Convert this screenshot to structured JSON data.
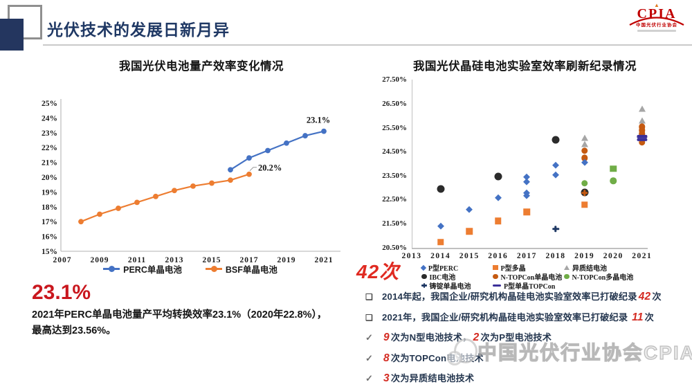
{
  "header": {
    "title": "光伏技术的发展日新月异",
    "logo": {
      "name": "CPIA",
      "org": "中国光伏行业协会"
    }
  },
  "chart_data": [
    {
      "type": "line",
      "title": "我国光伏电池量产效率变化情况",
      "ylim": [
        15,
        25
      ],
      "yticks": [
        "25%",
        "24%",
        "23%",
        "22%",
        "21%",
        "20%",
        "19%",
        "18%",
        "17%",
        "16%",
        "15%"
      ],
      "xticks": [
        2007,
        2009,
        2011,
        2013,
        2015,
        2017,
        2019,
        2021
      ],
      "grid": false,
      "legend_position": "bottom",
      "series": [
        {
          "name": "PERC单晶电池",
          "color": "#4472C4",
          "x": [
            2016,
            2017,
            2018,
            2019,
            2020,
            2021
          ],
          "y": [
            20.5,
            21.3,
            21.8,
            22.3,
            22.8,
            23.1
          ]
        },
        {
          "name": "BSF单晶电池",
          "color": "#ED7D31",
          "x": [
            2008,
            2009,
            2010,
            2011,
            2012,
            2013,
            2014,
            2015,
            2016,
            2017
          ],
          "y": [
            17.0,
            17.5,
            17.9,
            18.3,
            18.7,
            19.1,
            19.4,
            19.6,
            19.8,
            20.2
          ]
        }
      ],
      "annotations": [
        {
          "text": "23.1%",
          "year": 2021,
          "value": 23.1,
          "placement": "above"
        },
        {
          "text": "20.2%",
          "year": 2017,
          "value": 20.2,
          "placement": "right",
          "leader": true
        }
      ]
    },
    {
      "type": "scatter",
      "title": "我国光伏晶硅电池实验室效率刷新纪录情况",
      "ylim": [
        20.5,
        27.5
      ],
      "yticks": [
        "27.50%",
        "26.50%",
        "25.50%",
        "24.50%",
        "23.50%",
        "22.50%",
        "21.50%",
        "20.50%"
      ],
      "xticks": [
        2013,
        2014,
        2015,
        2016,
        2017,
        2018,
        2019,
        2020,
        2021
      ],
      "grid": false,
      "legend_position": "bottom",
      "legend": [
        {
          "label": "P型PERC",
          "marker": "diamond",
          "color": "#4472C4"
        },
        {
          "label": "P型多晶",
          "marker": "square",
          "color": "#ED7D31"
        },
        {
          "label": "异质结电池",
          "marker": "triangle",
          "color": "#A6A6A6"
        },
        {
          "label": "IBC电池",
          "marker": "circle",
          "color": "#2B2B2B"
        },
        {
          "label": "N-TOPCon单晶电池",
          "marker": "circle",
          "color": "#C55A11"
        },
        {
          "label": "N-TOPCon多晶电池",
          "marker": "circle",
          "color": "#70AD47"
        },
        {
          "label": "铸锭单晶电池",
          "marker": "cross",
          "color": "#1F3864"
        },
        {
          "label": "P型单晶TOPCon",
          "marker": "dash",
          "color": "#3B3099"
        }
      ],
      "points": [
        {
          "year": 2014,
          "value": 22.95,
          "marker": "circle",
          "color": "#2B2B2B",
          "size": 11,
          "series": "IBC电池"
        },
        {
          "year": 2014,
          "value": 21.4,
          "marker": "diamond",
          "color": "#4472C4",
          "series": "P型PERC"
        },
        {
          "year": 2014,
          "value": 20.75,
          "marker": "square",
          "color": "#ED7D31",
          "series": "P型多晶"
        },
        {
          "year": 2015,
          "value": 22.1,
          "marker": "diamond",
          "color": "#4472C4",
          "series": "P型PERC"
        },
        {
          "year": 2015,
          "value": 21.2,
          "marker": "square",
          "color": "#ED7D31",
          "series": "P型多晶"
        },
        {
          "year": 2016,
          "value": 23.48,
          "marker": "circle",
          "color": "#2B2B2B",
          "size": 11,
          "series": "IBC电池"
        },
        {
          "year": 2016,
          "value": 22.6,
          "marker": "diamond",
          "color": "#4472C4",
          "series": "P型PERC"
        },
        {
          "year": 2016,
          "value": 21.62,
          "marker": "square",
          "color": "#ED7D31",
          "series": "P型多晶"
        },
        {
          "year": 2017,
          "value": 23.45,
          "marker": "diamond",
          "color": "#4472C4",
          "series": "P型PERC"
        },
        {
          "year": 2017,
          "value": 23.25,
          "marker": "diamond",
          "color": "#4472C4",
          "series": "P型PERC"
        },
        {
          "year": 2017,
          "value": 22.78,
          "marker": "diamond",
          "color": "#4472C4",
          "series": "P型PERC"
        },
        {
          "year": 2017,
          "value": 22.68,
          "marker": "diamond",
          "color": "#4472C4",
          "series": "P型PERC"
        },
        {
          "year": 2017,
          "value": 22.0,
          "marker": "square",
          "color": "#ED7D31",
          "series": "P型多晶"
        },
        {
          "year": 2018,
          "value": 25.02,
          "marker": "circle",
          "color": "#2B2B2B",
          "size": 11,
          "series": "IBC电池"
        },
        {
          "year": 2018,
          "value": 23.95,
          "marker": "diamond",
          "color": "#4472C4",
          "series": "P型PERC"
        },
        {
          "year": 2018,
          "value": 23.55,
          "marker": "diamond",
          "color": "#4472C4",
          "series": "P型PERC"
        },
        {
          "year": 2018,
          "value": 21.3,
          "marker": "cross",
          "color": "#1F3864",
          "series": "铸锭单晶电池"
        },
        {
          "year": 2019,
          "value": 25.1,
          "marker": "triangle",
          "color": "#A6A6A6",
          "series": "异质结电池"
        },
        {
          "year": 2019,
          "value": 24.85,
          "marker": "triangle",
          "color": "#A6A6A6",
          "series": "异质结电池"
        },
        {
          "year": 2019,
          "value": 24.56,
          "marker": "circle",
          "color": "#C55A11",
          "series": "N-TOPCon单晶电池"
        },
        {
          "year": 2019,
          "value": 24.25,
          "marker": "circle",
          "color": "#C55A11",
          "series": "N-TOPCon单晶电池"
        },
        {
          "year": 2019,
          "value": 24.05,
          "marker": "diamond",
          "color": "#4472C4",
          "series": "P型PERC"
        },
        {
          "year": 2019,
          "value": 23.2,
          "marker": "circle",
          "color": "#70AD47",
          "series": "N-TOPCon多晶电池"
        },
        {
          "year": 2019,
          "value": 22.82,
          "marker": "circle",
          "color": "#2B2B2B",
          "size": 11,
          "series": "IBC电池"
        },
        {
          "year": 2019,
          "value": 22.8,
          "marker": "cross",
          "color": "#C55A11",
          "series": "铸锭单晶电池"
        },
        {
          "year": 2019,
          "value": 22.3,
          "marker": "square",
          "color": "#ED7D31",
          "series": "P型多晶"
        },
        {
          "year": 2020,
          "value": 23.8,
          "marker": "square",
          "color": "#70AD47",
          "series": "铸锭单晶电池"
        },
        {
          "year": 2020,
          "value": 23.3,
          "marker": "circle",
          "color": "#70AD47",
          "series": "N-TOPCon多晶电池"
        },
        {
          "year": 2021,
          "value": 26.3,
          "marker": "triangle",
          "color": "#A6A6A6",
          "series": "异质结电池"
        },
        {
          "year": 2021,
          "value": 25.82,
          "marker": "triangle",
          "color": "#A6A6A6",
          "series": "异质结电池"
        },
        {
          "year": 2021,
          "value": 25.55,
          "marker": "circle",
          "color": "#C55A11",
          "series": "N-TOPCon单晶电池"
        },
        {
          "year": 2021,
          "value": 25.4,
          "marker": "circle",
          "color": "#C55A11",
          "series": "N-TOPCon单晶电池"
        },
        {
          "year": 2021,
          "value": 25.26,
          "marker": "circle",
          "color": "#C55A11",
          "series": "N-TOPCon单晶电池"
        },
        {
          "year": 2021,
          "value": 24.9,
          "marker": "circle",
          "color": "#C55A11",
          "series": "N-TOPCon单晶电池"
        },
        {
          "year": 2021,
          "value": 25.14,
          "marker": "dash",
          "color": "#3B3099",
          "series": "P型单晶TOPCon"
        },
        {
          "year": 2021,
          "value": 25.02,
          "marker": "dash",
          "color": "#3B3099",
          "series": "P型单晶TOPCon"
        }
      ]
    }
  ],
  "left_note": {
    "headline": "23.1%",
    "line1": "2021年PERC单晶电池量产平均转换效率23.1%（2020年22.8%），",
    "line2": "最高达到23.56%。"
  },
  "right_stat": "42次",
  "bullets": [
    {
      "marker": "square",
      "segments": [
        {
          "t": "2014年起，我国企业/研究机构晶硅电池实验室效率已打破纪录"
        },
        {
          "t": "42",
          "red": true
        },
        {
          "t": "次"
        }
      ]
    },
    {
      "marker": "square",
      "segments": [
        {
          "t": "2021年，我国企业/研究机构晶硅电池实验室效率已打破纪录 "
        },
        {
          "t": "11",
          "red": true
        },
        {
          "t": "次"
        }
      ]
    },
    {
      "marker": "check",
      "segments": [
        {
          "t": "9",
          "red": true
        },
        {
          "t": "次为N型电池技术，"
        },
        {
          "t": "2",
          "red": true
        },
        {
          "t": "次为P型电池技术"
        }
      ]
    },
    {
      "marker": "check",
      "segments": [
        {
          "t": "8",
          "red": true
        },
        {
          "t": "次为TOPCon电池技术"
        }
      ]
    },
    {
      "marker": "check",
      "segments": [
        {
          "t": "3",
          "red": true
        },
        {
          "t": "次为异质结电池技术"
        }
      ]
    }
  ],
  "watermark": "中国光伏行业协会CPIA"
}
